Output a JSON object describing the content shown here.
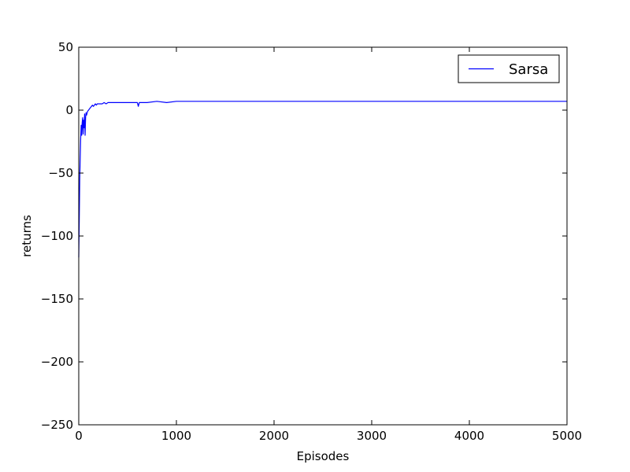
{
  "chart_data": {
    "type": "line",
    "xlabel": "Episodes",
    "ylabel": "returns",
    "xlim": [
      0,
      5000
    ],
    "ylim": [
      -250,
      50
    ],
    "xticks": [
      0,
      1000,
      2000,
      3000,
      4000,
      5000
    ],
    "yticks": [
      50,
      0,
      -50,
      -100,
      -150,
      -200,
      -250
    ],
    "xtick_labels": [
      "0",
      "1000",
      "2000",
      "3000",
      "4000",
      "5000"
    ],
    "ytick_labels": [
      "50",
      "0",
      "−50",
      "−100",
      "−150",
      "−200",
      "−250"
    ],
    "grid": false,
    "legend_position": "top-right",
    "series": [
      {
        "name": "Sarsa",
        "color": "#0000ff",
        "x": [
          0,
          5,
          10,
          15,
          20,
          25,
          30,
          35,
          40,
          45,
          50,
          55,
          60,
          65,
          70,
          75,
          80,
          90,
          100,
          110,
          120,
          130,
          140,
          150,
          160,
          170,
          180,
          190,
          200,
          220,
          240,
          260,
          280,
          300,
          330,
          360,
          400,
          450,
          500,
          550,
          600,
          610,
          620,
          650,
          700,
          800,
          900,
          1000,
          1100,
          1200,
          1300,
          1400,
          1500,
          1700,
          2000,
          2500,
          3000,
          3500,
          4000,
          4500,
          5000
        ],
        "y": [
          -117,
          -88,
          -55,
          -38,
          -22,
          -12,
          -20,
          -10,
          -6,
          -19,
          -8,
          -14,
          -3,
          -20,
          -6,
          -2,
          -4,
          -1,
          0,
          1,
          2,
          3,
          4,
          3,
          4,
          5,
          4,
          5,
          5,
          5,
          5,
          6,
          5,
          6,
          6,
          6,
          6,
          6,
          6,
          6,
          6,
          3,
          6,
          6,
          6,
          7,
          6,
          7,
          7,
          7,
          7,
          7,
          7,
          7,
          7,
          7,
          7,
          7,
          7,
          7,
          7
        ]
      }
    ]
  }
}
